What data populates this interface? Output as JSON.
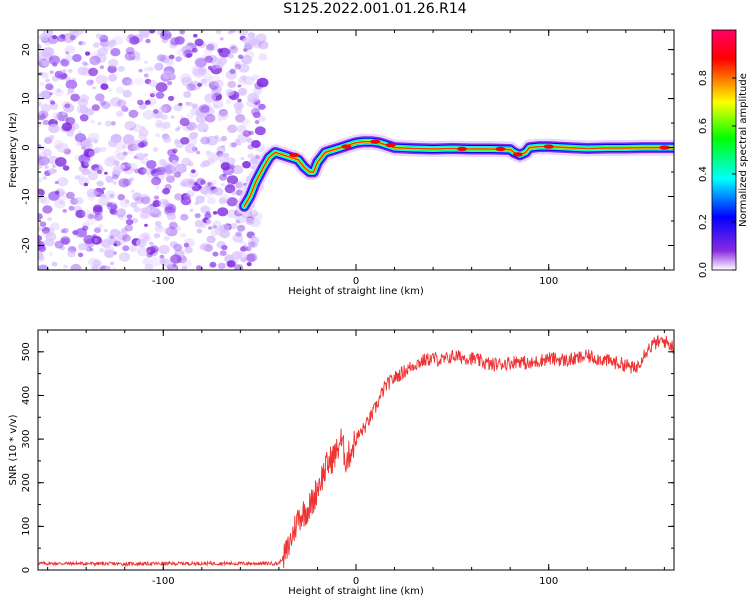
{
  "title": "S125.2022.001.01.26.R14",
  "chart_data": [
    {
      "type": "heatmap",
      "xlabel": "Height of straight line (km)",
      "ylabel": "Frequency (Hz)",
      "xlim": [
        -165,
        165
      ],
      "ylim": [
        -25,
        24
      ],
      "xticks": [
        -100,
        0,
        100
      ],
      "yticks": [
        -20,
        -10,
        0,
        10,
        20
      ],
      "colorbar": {
        "label": "Normalized spectral amplitude",
        "range": [
          0,
          1
        ],
        "ticks": [
          0.0,
          0.2,
          0.4,
          0.6,
          0.8
        ],
        "colors": [
          "#ffffff",
          "#8a2be2",
          "#0000ff",
          "#00ffff",
          "#00ff00",
          "#ffff00",
          "#ff0000",
          "#ff0066"
        ]
      },
      "noise_region_x": [
        -165,
        -48
      ],
      "ridge": {
        "x": [
          -58,
          -55,
          -52,
          -48,
          -45,
          -42,
          -38,
          -34,
          -30,
          -27,
          -24,
          -22,
          -20,
          -16,
          -12,
          -8,
          -4,
          0,
          4,
          8,
          12,
          16,
          20,
          30,
          40,
          50,
          60,
          70,
          80,
          82,
          85,
          88,
          90,
          95,
          100,
          110,
          120,
          130,
          140,
          150,
          160,
          165
        ],
        "y": [
          -12,
          -10,
          -7,
          -4,
          -2,
          -1,
          -1.5,
          -2,
          -2.5,
          -4,
          -5,
          -5,
          -3,
          -1,
          -0.5,
          0,
          0.5,
          1,
          1.2,
          1.2,
          1,
          0.5,
          0,
          -0.2,
          -0.3,
          -0.2,
          -0.3,
          -0.3,
          -0.4,
          -1,
          -1.5,
          -1,
          0,
          0.2,
          0.2,
          0,
          -0.2,
          -0.1,
          -0.1,
          0,
          0,
          0
        ]
      }
    },
    {
      "type": "line",
      "xlabel": "Height of straight line (km)",
      "ylabel": "SNR (10 * v/v)",
      "xlim": [
        -165,
        165
      ],
      "ylim": [
        0,
        550
      ],
      "xticks": [
        -100,
        0,
        100
      ],
      "yticks": [
        0,
        100,
        200,
        300,
        400,
        500
      ],
      "color": "#ee3333",
      "series": [
        {
          "x": [
            -165,
            -150,
            -120,
            -90,
            -60,
            -40,
            -36,
            -33,
            -30,
            -25,
            -22,
            -20,
            -15,
            -10,
            -8,
            -5,
            0,
            5,
            10,
            15,
            20,
            25,
            30,
            35,
            40,
            45,
            50,
            60,
            70,
            80,
            85,
            90,
            95,
            100,
            110,
            120,
            130,
            140,
            145,
            150,
            155,
            160,
            165
          ],
          "values": [
            15,
            15,
            14,
            15,
            15,
            15,
            40,
            80,
            120,
            140,
            160,
            190,
            240,
            270,
            300,
            250,
            300,
            330,
            370,
            420,
            440,
            455,
            470,
            480,
            485,
            480,
            490,
            485,
            470,
            475,
            480,
            470,
            480,
            485,
            480,
            490,
            480,
            470,
            460,
            500,
            520,
            525,
            510
          ]
        }
      ]
    }
  ]
}
